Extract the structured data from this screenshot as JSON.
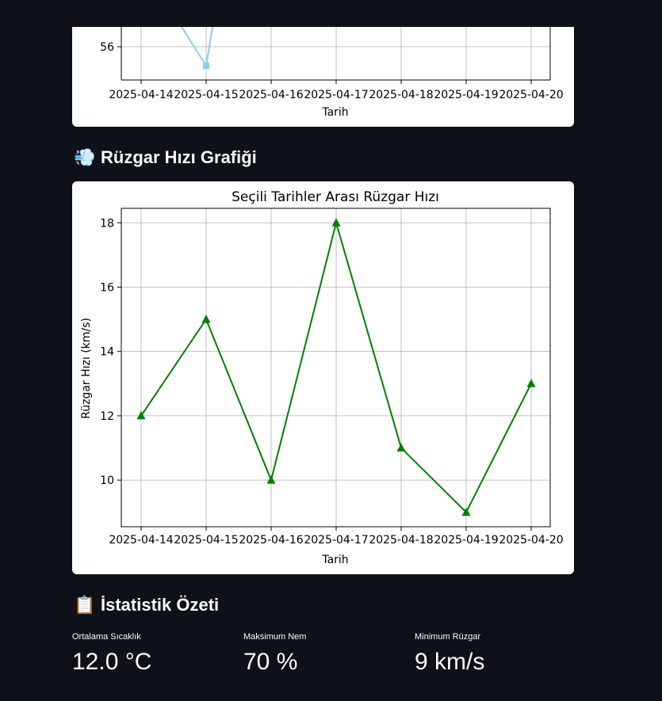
{
  "top_chart": {
    "xlabel": "Tarih",
    "y_tick": "56",
    "categories": [
      "2025-04-14",
      "2025-04-15",
      "2025-04-16",
      "2025-04-17",
      "2025-04-18",
      "2025-04-19",
      "2025-04-20"
    ],
    "line_color": "#87ceeb"
  },
  "wind_section": {
    "emoji": "💨",
    "title": "Rüzgar Hızı Grafiği"
  },
  "chart_data": {
    "type": "line",
    "title": "Seçili Tarihler Arası Rüzgar Hızı",
    "xlabel": "Tarih",
    "ylabel": "Rüzgar Hızı (km/s)",
    "categories": [
      "2025-04-14",
      "2025-04-15",
      "2025-04-16",
      "2025-04-17",
      "2025-04-18",
      "2025-04-19",
      "2025-04-20"
    ],
    "values": [
      12,
      15,
      10,
      18,
      11,
      9,
      13
    ],
    "yticks": [
      10,
      12,
      14,
      16,
      18
    ],
    "ylim": [
      8.55,
      18.45
    ],
    "grid": true,
    "marker": "triangle",
    "color": "#008000"
  },
  "stats_section": {
    "emoji": "📋",
    "title": "İstatistik Özeti",
    "metrics": [
      {
        "label": "Ortalama Sıcaklık",
        "value": "12.0 °C"
      },
      {
        "label": "Maksimum Nem",
        "value": "70 %"
      },
      {
        "label": "Minimum Rüzgar",
        "value": "9 km/s"
      }
    ]
  }
}
